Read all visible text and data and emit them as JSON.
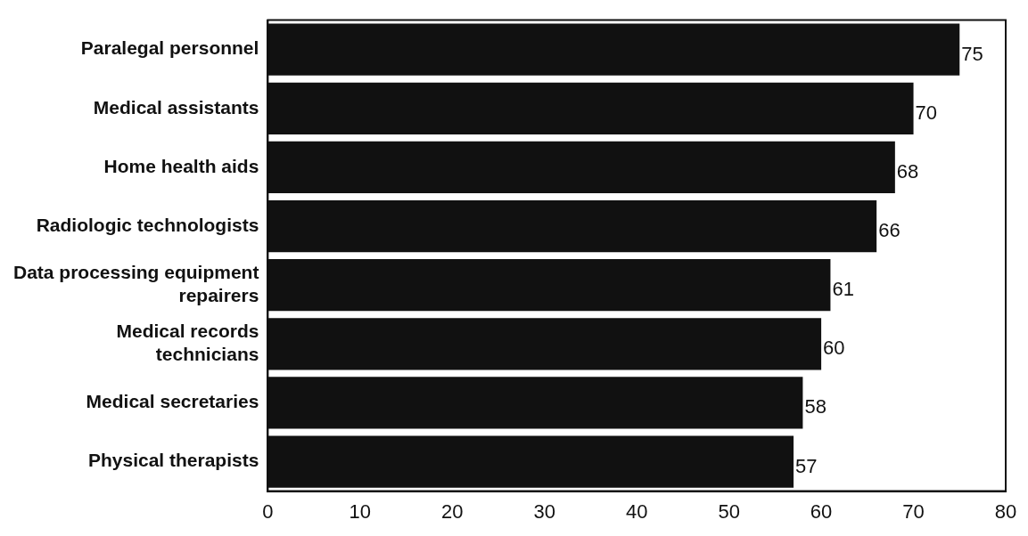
{
  "chart_data": {
    "type": "bar",
    "orientation": "horizontal",
    "categories": [
      "Paralegal personnel",
      "Medical assistants",
      "Home health aids",
      "Radiologic technologists",
      "Data processing equipment repairers",
      "Medical records technicians",
      "Medical secretaries",
      "Physical therapists"
    ],
    "values": [
      75,
      70,
      68,
      66,
      61,
      60,
      58,
      57
    ],
    "color": "#111111",
    "xlim": [
      0,
      80
    ],
    "xticks": [
      0,
      10,
      20,
      30,
      40,
      50,
      60,
      70,
      80
    ],
    "data_labels": true,
    "grid": false,
    "legend": false
  }
}
